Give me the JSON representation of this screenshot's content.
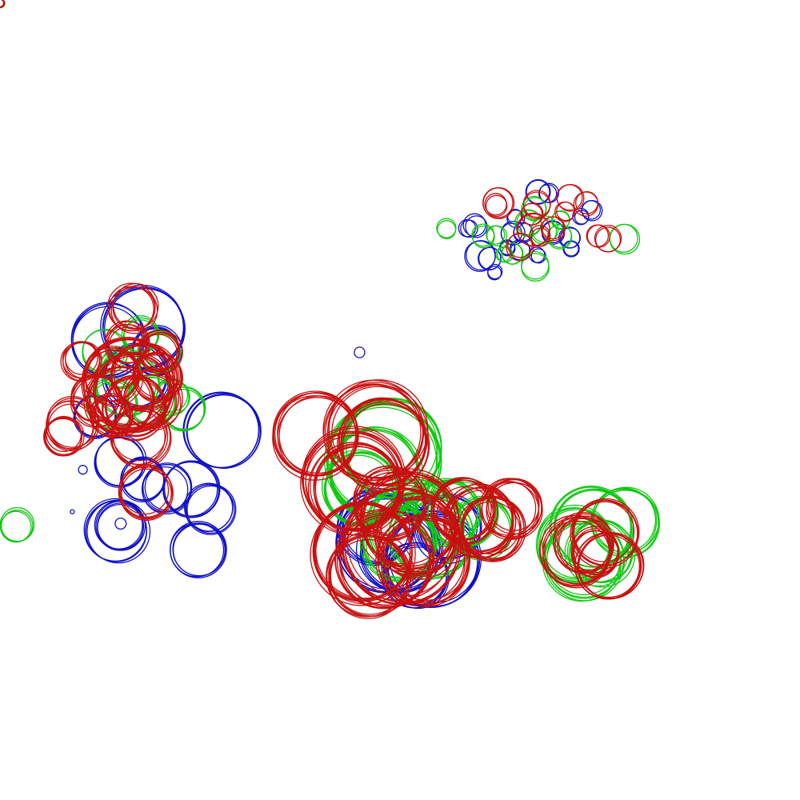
{
  "canvas": {
    "background": "#ffffff"
  },
  "palette": {
    "blue": "#1010c8",
    "green": "#10c810",
    "red": "#c81010"
  },
  "clusters": [
    {
      "name": "cluster-top-right",
      "colors": [
        "blue",
        "green",
        "red"
      ]
    },
    {
      "name": "cluster-left",
      "colors": [
        "blue",
        "green",
        "red"
      ]
    },
    {
      "name": "cluster-center",
      "colors": [
        "blue",
        "green",
        "red"
      ]
    },
    {
      "name": "cluster-right",
      "colors": [
        "green",
        "red"
      ]
    },
    {
      "name": "cluster-far-left",
      "colors": [
        "green"
      ]
    },
    {
      "name": "cluster-corner",
      "colors": [
        "red",
        "green"
      ]
    }
  ]
}
